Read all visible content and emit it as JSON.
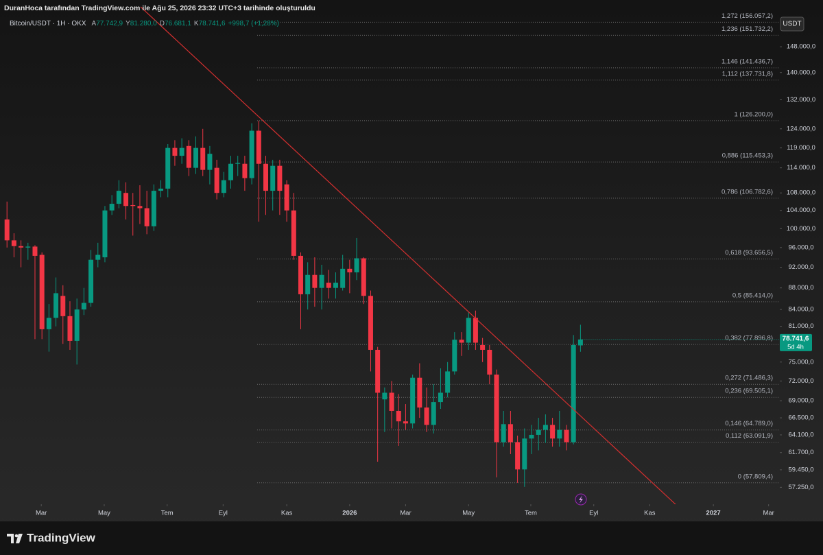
{
  "header": {
    "caption": "DuranHoca tarafından TradingView.com ile Ağu 25, 2026 23:32 UTC+3 tarihinde oluşturuldu",
    "symbol": "Bitcoin/USDT · 1H · OKX",
    "ohlc": [
      {
        "key": "A",
        "value": "77.742,9"
      },
      {
        "key": "Y",
        "value": "81.280,0"
      },
      {
        "key": "D",
        "value": "76.681,1"
      },
      {
        "key": "K",
        "value": "78.741,6"
      }
    ],
    "change": "+998,7 (+1,28%)"
  },
  "footer": {
    "brand": "TradingView"
  },
  "chart_data": {
    "type": "candlestick",
    "log_scale": true,
    "currency": "USDT",
    "up_color": "#089981",
    "down_color": "#f23645",
    "open": [
      102000,
      97500,
      96300,
      96000,
      96200,
      94500,
      80500,
      82500,
      86500,
      82800,
      78500,
      84000,
      85200,
      93500,
      94000,
      104000,
      105500,
      108000,
      105200,
      105000,
      104500,
      100500,
      108500,
      109000,
      119000,
      117000,
      119500,
      114000,
      119000,
      113500,
      114000,
      108000,
      111000,
      115000,
      115000,
      111500,
      123500,
      115000,
      108500,
      114500,
      110000,
      104000,
      94300,
      86800,
      90500,
      88000,
      89000,
      88000,
      88000,
      91700,
      91000,
      93800,
      86500,
      77000,
      69200,
      70200,
      67500,
      66000,
      65700,
      72500,
      68000,
      65500,
      68800,
      70200,
      73500,
      78700,
      78200,
      82500,
      77800,
      77000,
      73000,
      63100,
      65600,
      63100,
      59500,
      63600,
      64100,
      64800,
      65500,
      63600,
      64800,
      63100,
      77742.9
    ],
    "high": [
      106000,
      99000,
      97500,
      97000,
      96500,
      95000,
      85000,
      90000,
      88500,
      85500,
      86000,
      88000,
      95500,
      97000,
      105000,
      107500,
      111000,
      110500,
      108000,
      109800,
      108500,
      110000,
      111000,
      120000,
      121000,
      121500,
      121000,
      122000,
      124000,
      119500,
      116000,
      113000,
      117000,
      117000,
      117000,
      125500,
      126200,
      117000,
      116000,
      116000,
      111000,
      108000,
      95000,
      93000,
      94000,
      92500,
      91500,
      91000,
      94500,
      93500,
      98000,
      94000,
      87500,
      77500,
      71000,
      72000,
      70000,
      68500,
      73000,
      74800,
      71000,
      71500,
      74000,
      75000,
      80000,
      80000,
      83500,
      83800,
      79000,
      77800,
      73800,
      67500,
      67500,
      64000,
      65000,
      65500,
      66500,
      67000,
      66500,
      67500,
      65500,
      79500,
      81280
    ],
    "low": [
      96000,
      94000,
      92000,
      93500,
      78800,
      78800,
      76700,
      81000,
      78000,
      77000,
      74600,
      83000,
      84500,
      92000,
      93000,
      103000,
      104500,
      102000,
      98500,
      101000,
      98800,
      99500,
      107000,
      107000,
      114500,
      115000,
      112000,
      112500,
      112000,
      110000,
      106500,
      107000,
      109000,
      112000,
      108500,
      110000,
      101500,
      103000,
      104000,
      103000,
      101500,
      93500,
      80500,
      84000,
      84500,
      84000,
      86000,
      86000,
      87500,
      87000,
      89500,
      85000,
      73500,
      60500,
      64500,
      65000,
      62600,
      64800,
      65000,
      66500,
      64500,
      64300,
      67800,
      69500,
      73000,
      76000,
      77000,
      77000,
      75000,
      71500,
      58500,
      62500,
      61500,
      57800,
      57300,
      61500,
      62000,
      63000,
      62500,
      62500,
      62000,
      62800,
      76681.1
    ],
    "close": [
      97500,
      96300,
      96000,
      96200,
      94300,
      80500,
      82500,
      87000,
      82800,
      78500,
      84000,
      85200,
      93500,
      94500,
      104000,
      105500,
      108500,
      105000,
      105000,
      104500,
      100500,
      108500,
      109000,
      119000,
      117000,
      119000,
      114000,
      119000,
      113500,
      117500,
      108000,
      111000,
      115000,
      115200,
      111500,
      123500,
      115000,
      108500,
      114500,
      108500,
      104000,
      94300,
      86800,
      90500,
      88000,
      90500,
      88000,
      89000,
      91700,
      91000,
      93800,
      86500,
      77000,
      70200,
      70200,
      67500,
      66000,
      65700,
      72500,
      68000,
      65500,
      68800,
      70200,
      73500,
      78700,
      78200,
      82500,
      78200,
      77000,
      73000,
      63100,
      65600,
      63100,
      59500,
      63600,
      64100,
      64800,
      65500,
      63600,
      64800,
      63100,
      77800,
      78741.6
    ],
    "xlim": [
      -1,
      110.5
    ],
    "xticks": [
      {
        "value": 4.9,
        "label": "Mar"
      },
      {
        "value": 13.9,
        "label": "May"
      },
      {
        "value": 22.9,
        "label": "Tem"
      },
      {
        "value": 30.9,
        "label": "Eyl"
      },
      {
        "value": 40,
        "label": "Kas"
      },
      {
        "value": 49,
        "label": "2026"
      },
      {
        "value": 57,
        "label": "Mar"
      },
      {
        "value": 66,
        "label": "May"
      },
      {
        "value": 74.9,
        "label": "Tem"
      },
      {
        "value": 83.9,
        "label": "Eyl"
      },
      {
        "value": 91.9,
        "label": "Kas"
      },
      {
        "value": 101,
        "label": "2027"
      },
      {
        "value": 108.9,
        "label": "Mar"
      }
    ],
    "ylim": [
      55200,
      163700
    ],
    "yticks": [
      {
        "value": 148000,
        "label": "148.000,0"
      },
      {
        "value": 140000,
        "label": "140.000,0"
      },
      {
        "value": 132000,
        "label": "132.000,0"
      },
      {
        "value": 124000,
        "label": "124.000,0"
      },
      {
        "value": 119000,
        "label": "119.000,0"
      },
      {
        "value": 114000,
        "label": "114.000,0"
      },
      {
        "value": 108000,
        "label": "108.000,0"
      },
      {
        "value": 104000,
        "label": "104.000,0"
      },
      {
        "value": 100000,
        "label": "100.000,0"
      },
      {
        "value": 96000,
        "label": "96.000,0"
      },
      {
        "value": 92000,
        "label": "92.000,0"
      },
      {
        "value": 88000,
        "label": "88.000,0"
      },
      {
        "value": 84000,
        "label": "84.000,0"
      },
      {
        "value": 81000,
        "label": "81.000,0"
      },
      {
        "value": 75000,
        "label": "75.000,0"
      },
      {
        "value": 72000,
        "label": "72.000,0"
      },
      {
        "value": 69000,
        "label": "69.000,0"
      },
      {
        "value": 66500,
        "label": "66.500,0"
      },
      {
        "value": 64100,
        "label": "64.100,0"
      },
      {
        "value": 61700,
        "label": "61.700,0"
      },
      {
        "value": 59450,
        "label": "59.450,0"
      },
      {
        "value": 57250,
        "label": "57.250,0"
      }
    ],
    "fib_levels": [
      {
        "value": 156057.2,
        "label": "1,272 (156.057,2)"
      },
      {
        "value": 151732.2,
        "label": "1,236 (151.732,2)"
      },
      {
        "value": 141436.7,
        "label": "1,146 (141.436,7)"
      },
      {
        "value": 137731.8,
        "label": "1,112 (137.731,8)"
      },
      {
        "value": 126200,
        "label": "1 (126.200,0)"
      },
      {
        "value": 115453.3,
        "label": "0,886 (115.453,3)"
      },
      {
        "value": 106782.6,
        "label": "0,786 (106.782,6)"
      },
      {
        "value": 93656.5,
        "label": "0,618 (93.656,5)"
      },
      {
        "value": 85414,
        "label": "0,5 (85.414,0)"
      },
      {
        "value": 77896.8,
        "label": "0,382 (77.896,8)"
      },
      {
        "value": 71486.3,
        "label": "0,272 (71.486,3)"
      },
      {
        "value": 69505.1,
        "label": "0,236 (69.505,1)"
      },
      {
        "value": 64789,
        "label": "0,146 (64.789,0)"
      },
      {
        "value": 63091.9,
        "label": "0,112 (63.091,9)"
      },
      {
        "value": 57809.4,
        "label": "0 (57.809,4)"
      }
    ],
    "trendline": {
      "x": [
        19.1,
        96.1
      ],
      "y": [
        161300,
        54800
      ],
      "color": "#d32f2f"
    },
    "last_price": {
      "value": 78741.6,
      "label": "78.741,6"
    },
    "countdown": "5d 4h"
  }
}
